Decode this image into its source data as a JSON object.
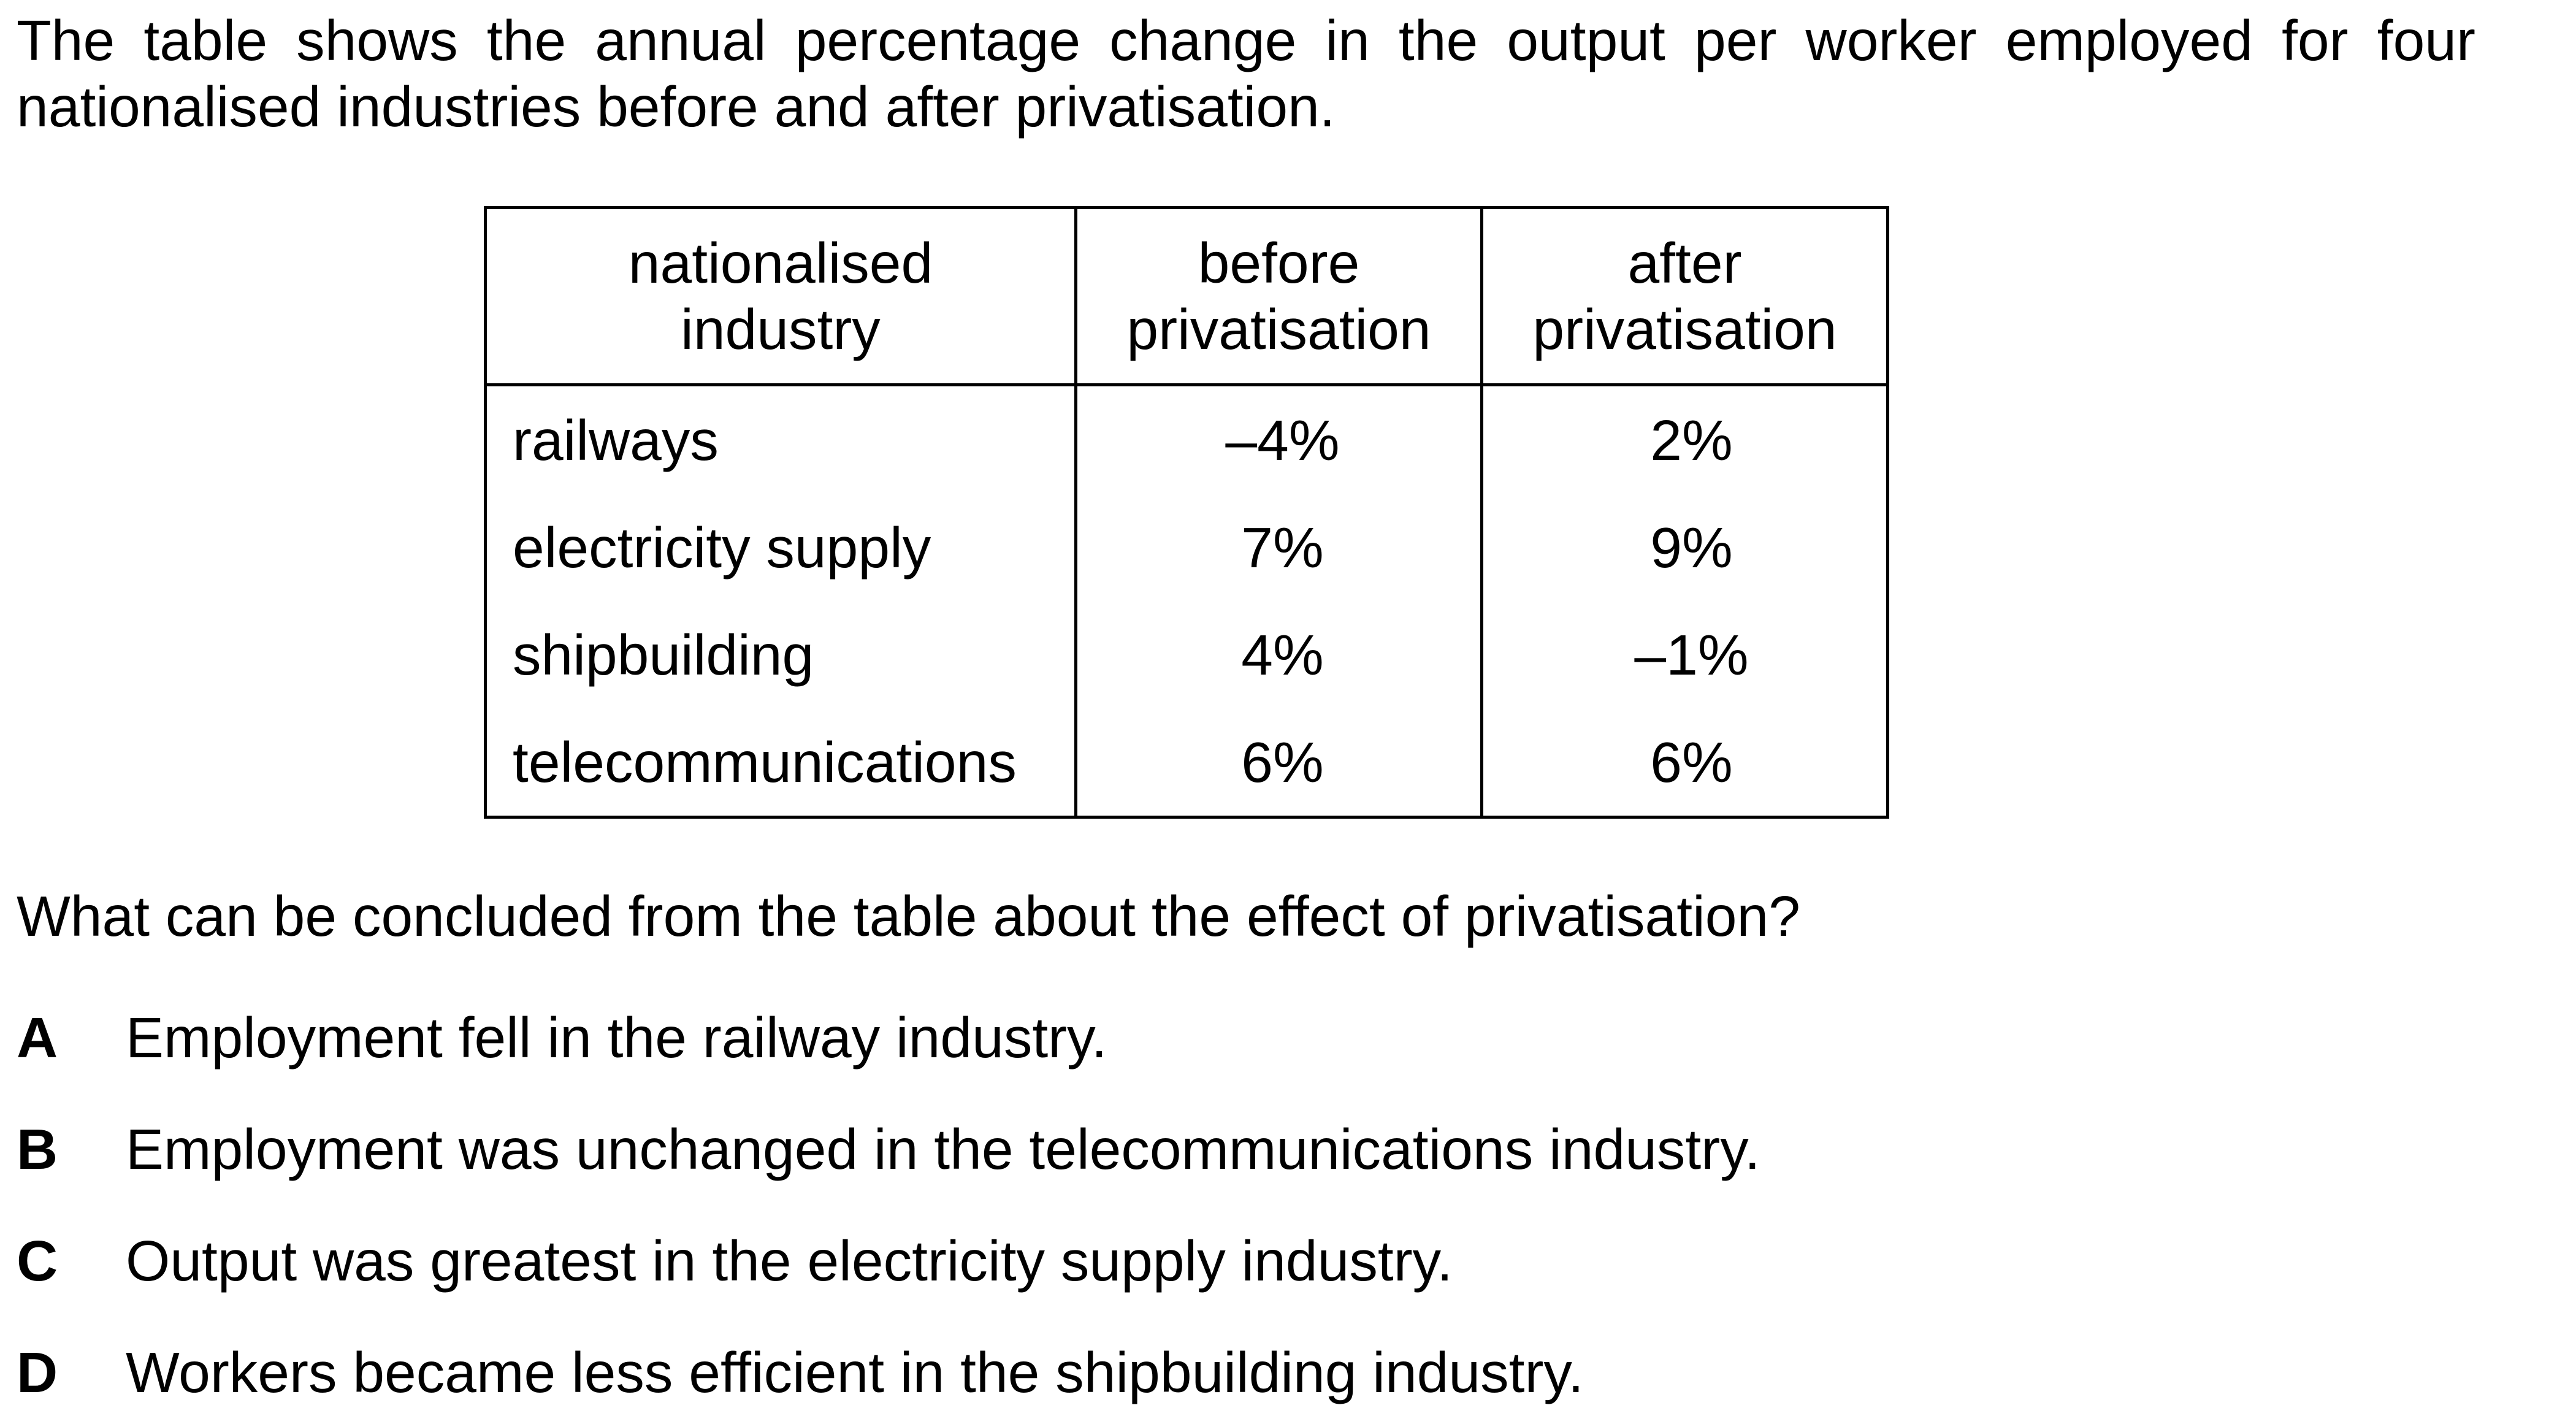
{
  "intro": "The table shows the annual percentage change in the output per worker employed for four nationalised industries before and after privatisation.",
  "table": {
    "headers": {
      "industry": [
        "nationalised",
        "industry"
      ],
      "before": [
        "before",
        "privatisation"
      ],
      "after": [
        "after",
        "privatisation"
      ]
    },
    "rows": [
      {
        "industry": "railways",
        "before": "–4%",
        "after": "2%"
      },
      {
        "industry": "electricity supply",
        "before": "7%",
        "after": "9%"
      },
      {
        "industry": "shipbuilding",
        "before": "4%",
        "after": "–1%"
      },
      {
        "industry": "telecommunications",
        "before": "6%",
        "after": "6%"
      }
    ]
  },
  "question": "What can be concluded from the table about the effect of privatisation?",
  "options": [
    {
      "letter": "A",
      "text": "Employment fell in the railway industry."
    },
    {
      "letter": "B",
      "text": "Employment was unchanged in the telecommunications industry."
    },
    {
      "letter": "C",
      "text": "Output was greatest in the electricity supply industry."
    },
    {
      "letter": "D",
      "text": "Workers became less efficient in the shipbuilding industry."
    }
  ]
}
